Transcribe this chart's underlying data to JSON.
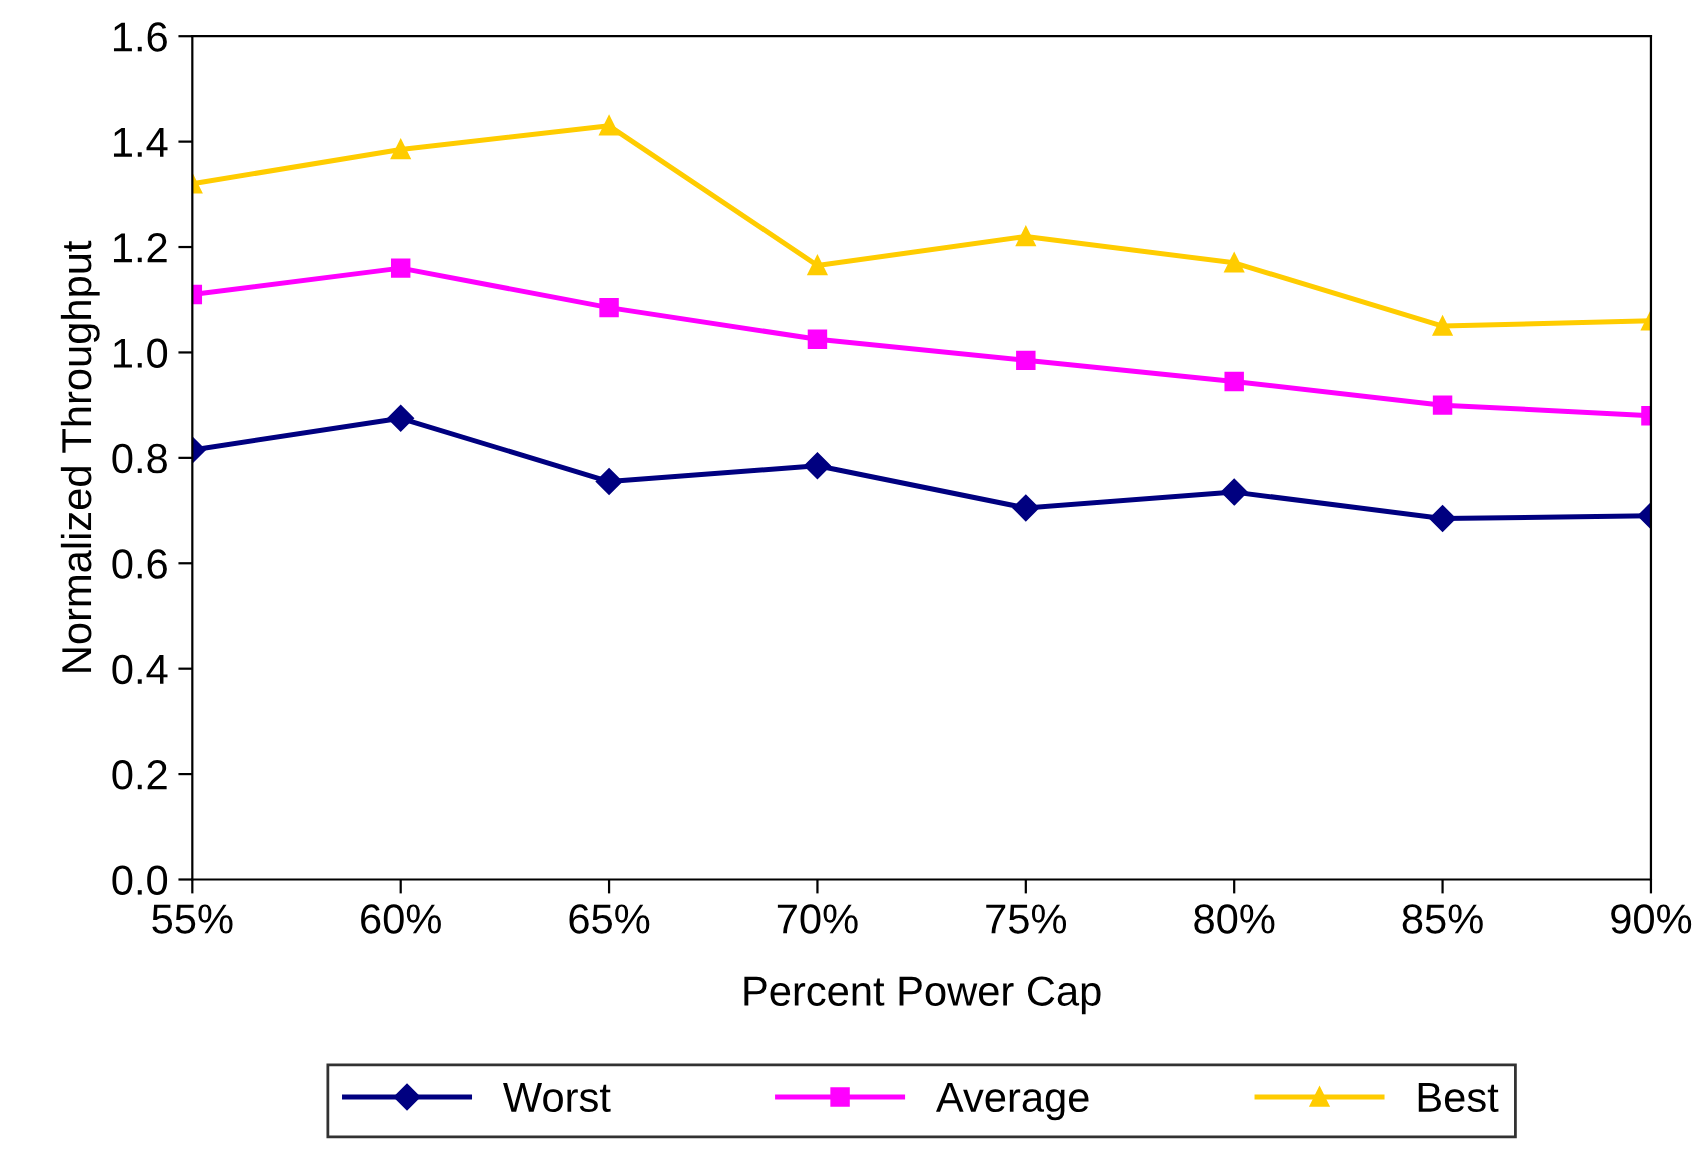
{
  "chart_data": {
    "type": "line",
    "xlabel": "Percent Power Cap",
    "ylabel": "Normalized Throughput",
    "x": [
      55,
      60,
      65,
      70,
      75,
      80,
      85,
      90
    ],
    "series": [
      {
        "name": "Worst",
        "color": "#000080",
        "marker": "diamond",
        "values": [
          0.815,
          0.875,
          0.755,
          0.785,
          0.705,
          0.735,
          0.685,
          0.69
        ]
      },
      {
        "name": "Average",
        "color": "#ff00ff",
        "marker": "square",
        "values": [
          1.11,
          1.16,
          1.085,
          1.025,
          0.985,
          0.945,
          0.9,
          0.88
        ]
      },
      {
        "name": "Best",
        "color": "#ffcc00",
        "marker": "triangle",
        "values": [
          1.32,
          1.385,
          1.43,
          1.165,
          1.22,
          1.17,
          1.05,
          1.06
        ]
      }
    ],
    "xlim": [
      55,
      90
    ],
    "xticks": [
      {
        "value": 55,
        "label": "55%"
      },
      {
        "value": 60,
        "label": "60%"
      },
      {
        "value": 65,
        "label": "65%"
      },
      {
        "value": 70,
        "label": "70%"
      },
      {
        "value": 75,
        "label": "75%"
      },
      {
        "value": 80,
        "label": "80%"
      },
      {
        "value": 85,
        "label": "85%"
      },
      {
        "value": 90,
        "label": "90%"
      }
    ],
    "ylim": [
      0,
      1.6
    ],
    "yticks": [
      {
        "value": 0,
        "label": "0.0"
      },
      {
        "value": 0.2,
        "label": "0.2"
      },
      {
        "value": 0.4,
        "label": "0.4"
      },
      {
        "value": 0.6,
        "label": "0.6"
      },
      {
        "value": 0.8,
        "label": "0.8"
      },
      {
        "value": 1.0,
        "label": "1.0"
      },
      {
        "value": 1.2,
        "label": "1.2"
      },
      {
        "value": 1.4,
        "label": "1.4"
      },
      {
        "value": 1.6,
        "label": "1.6"
      }
    ],
    "grid": false,
    "legend": "bottom",
    "line_style": "solid"
  }
}
